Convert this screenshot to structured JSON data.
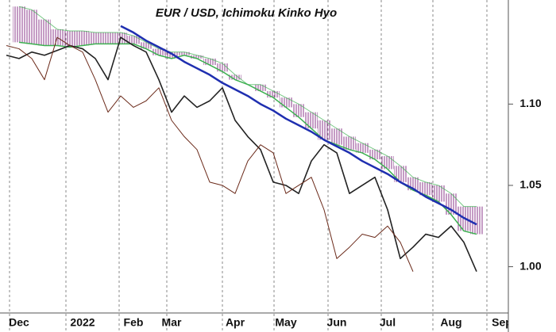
{
  "chart_data": {
    "type": "ichimoku",
    "title": "EUR / USD, Ichimoku Kinko Hyo",
    "categories": [
      null,
      "Dec",
      null,
      null,
      null,
      null,
      "2022",
      null,
      null,
      null,
      "Feb",
      null,
      null,
      "Mar",
      null,
      null,
      null,
      null,
      "Apr",
      null,
      null,
      null,
      "May",
      null,
      null,
      null,
      "Jun",
      null,
      null,
      null,
      "Jul",
      null,
      null,
      null,
      null,
      "Aug",
      null,
      null,
      null,
      "Sep"
    ],
    "ylim": [
      0.973,
      1.164
    ],
    "yticks": [
      {
        "value": 1.1,
        "label": "1.10"
      },
      {
        "value": 1.05,
        "label": "1.05"
      },
      {
        "value": 1.0,
        "label": "1.00"
      }
    ],
    "series": [
      {
        "color": "#222222",
        "width": 1.6,
        "values": [
          1.13,
          1.128,
          1.132,
          1.13,
          1.133,
          1.136,
          1.134,
          1.128,
          1.115,
          1.141,
          1.136,
          1.132,
          1.115,
          1.095,
          1.105,
          1.098,
          1.102,
          1.11,
          1.09,
          1.08,
          1.072,
          1.052,
          1.05,
          1.045,
          1.065,
          1.075,
          1.07,
          1.045,
          1.05,
          1.055,
          1.035,
          1.005,
          1.012,
          1.02,
          1.018,
          1.025,
          1.015,
          0.997,
          null,
          null
        ]
      },
      {
        "color": "#6b2a1a",
        "width": 1,
        "values": [
          1.136,
          1.134,
          1.128,
          1.115,
          1.141,
          1.136,
          1.132,
          1.115,
          1.095,
          1.105,
          1.098,
          1.102,
          1.11,
          1.09,
          1.08,
          1.072,
          1.052,
          1.05,
          1.045,
          1.065,
          1.075,
          1.07,
          1.045,
          1.05,
          1.055,
          1.035,
          1.005,
          1.012,
          1.02,
          1.018,
          1.025,
          1.015,
          0.997,
          null,
          null,
          null,
          null,
          null,
          null,
          null
        ]
      },
      {
        "color": "#1f2fb0",
        "width": 2.5,
        "values": [
          null,
          null,
          null,
          null,
          null,
          null,
          null,
          null,
          null,
          1.148,
          1.144,
          1.139,
          1.135,
          1.131,
          1.126,
          1.122,
          1.118,
          1.113,
          1.109,
          1.105,
          1.1,
          1.096,
          1.091,
          1.087,
          1.083,
          1.078,
          1.074,
          1.07,
          1.065,
          1.061,
          1.057,
          1.052,
          1.048,
          1.043,
          1.039,
          1.035,
          1.03,
          1.026,
          null,
          null
        ]
      }
    ],
    "cloud": {
      "color": "#8b3a8b",
      "edge_color": "#3cb050",
      "top": [
        null,
        1.16,
        1.158,
        1.152,
        1.146,
        1.145,
        1.145,
        1.144,
        1.144,
        1.144,
        1.142,
        1.138,
        1.134,
        1.132,
        1.132,
        1.13,
        1.128,
        1.125,
        1.118,
        1.112,
        1.112,
        1.108,
        1.104,
        1.1,
        1.095,
        1.09,
        1.085,
        1.08,
        1.076,
        1.072,
        1.068,
        1.062,
        1.055,
        1.052,
        1.05,
        1.045,
        1.037,
        1.037,
        null,
        null
      ],
      "bottom": [
        null,
        1.138,
        1.137,
        1.136,
        1.136,
        1.135,
        1.136,
        1.137,
        1.137,
        1.137,
        1.137,
        1.134,
        1.13,
        1.128,
        1.13,
        1.128,
        1.124,
        1.12,
        1.115,
        1.112,
        1.108,
        1.104,
        1.098,
        1.092,
        1.085,
        1.078,
        1.075,
        1.072,
        1.07,
        1.066,
        1.06,
        1.052,
        1.047,
        1.044,
        1.04,
        1.032,
        1.022,
        1.02,
        null,
        null
      ]
    }
  }
}
